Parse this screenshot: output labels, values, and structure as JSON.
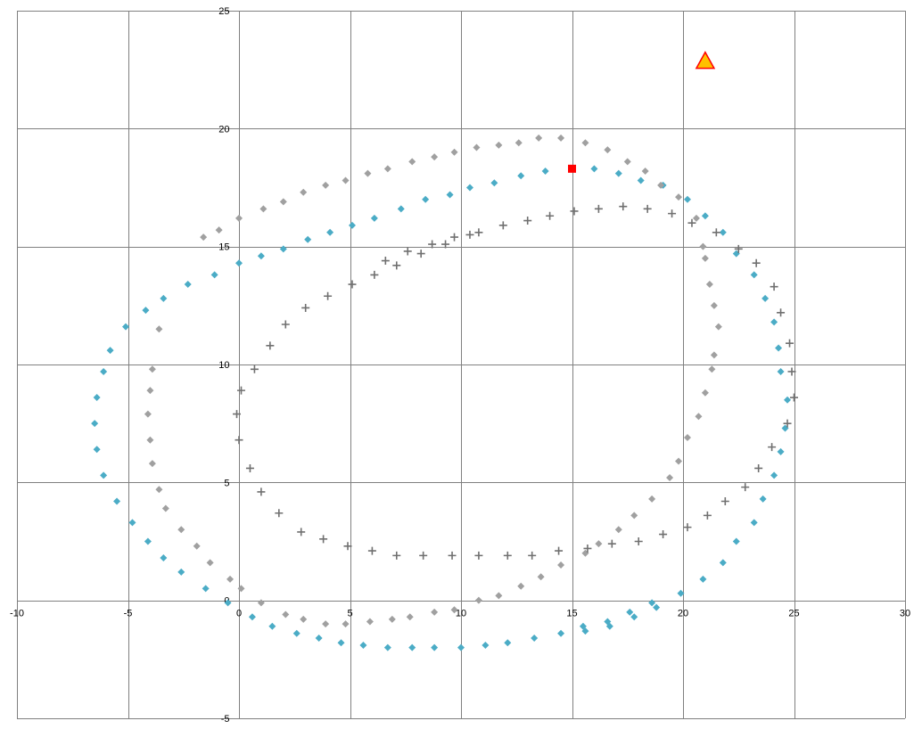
{
  "colors": {
    "background": "#ffffff",
    "grid": "#808080",
    "axis": "#808080",
    "series_blue": "#4bacc6",
    "series_gray": "#a0a0a0",
    "series_plus": "#707070",
    "marker_square": "#ff0000",
    "marker_triangle_fill": "#ffc000",
    "marker_triangle_edge": "#ff0000"
  },
  "chart_data": {
    "type": "scatter",
    "title": "",
    "xlabel": "",
    "ylabel": "",
    "xlim": [
      -10,
      30
    ],
    "ylim": [
      -5,
      25
    ],
    "x_ticks": [
      -10,
      -5,
      0,
      5,
      10,
      15,
      20,
      25,
      30
    ],
    "y_ticks": [
      -5,
      0,
      5,
      10,
      15,
      20,
      25
    ],
    "x_tick_labels": [
      "-10",
      "-5",
      "0",
      "5",
      "10",
      "15",
      "20",
      "25",
      "30"
    ],
    "y_tick_labels": [
      "-5",
      "0",
      "5",
      "10",
      "15",
      "20",
      "25"
    ],
    "grid": true,
    "legend": "none",
    "series": [
      {
        "marker": "diamond",
        "color": "#4bacc6",
        "points": [
          [
            -6.5,
            7.5
          ],
          [
            -6.4,
            6.4
          ],
          [
            -6.4,
            8.6
          ],
          [
            -6.1,
            5.3
          ],
          [
            -6.1,
            9.7
          ],
          [
            -5.8,
            10.6
          ],
          [
            -5.5,
            4.2
          ],
          [
            -5.1,
            11.6
          ],
          [
            -4.8,
            3.3
          ],
          [
            -4.2,
            12.3
          ],
          [
            -4.1,
            2.5
          ],
          [
            -3.4,
            12.8
          ],
          [
            -3.4,
            1.8
          ],
          [
            -2.6,
            1.2
          ],
          [
            -2.3,
            13.4
          ],
          [
            -1.5,
            0.5
          ],
          [
            -1.1,
            13.8
          ],
          [
            -0.5,
            -0.1
          ],
          [
            0.0,
            14.3
          ],
          [
            0.6,
            -0.7
          ],
          [
            1.0,
            14.6
          ],
          [
            1.5,
            -1.1
          ],
          [
            2.0,
            14.9
          ],
          [
            2.6,
            -1.4
          ],
          [
            3.1,
            15.3
          ],
          [
            3.6,
            -1.6
          ],
          [
            4.1,
            15.6
          ],
          [
            4.6,
            -1.8
          ],
          [
            5.1,
            15.9
          ],
          [
            5.6,
            -1.9
          ],
          [
            6.1,
            16.2
          ],
          [
            6.7,
            -2.0
          ],
          [
            7.3,
            16.6
          ],
          [
            7.8,
            -2.0
          ],
          [
            8.4,
            17.0
          ],
          [
            8.8,
            -2.0
          ],
          [
            9.5,
            17.2
          ],
          [
            10.0,
            -2.0
          ],
          [
            10.4,
            17.5
          ],
          [
            11.1,
            -1.9
          ],
          [
            11.5,
            17.7
          ],
          [
            12.1,
            -1.8
          ],
          [
            12.7,
            18.0
          ],
          [
            13.3,
            -1.6
          ],
          [
            13.8,
            18.2
          ],
          [
            14.5,
            -1.4
          ],
          [
            15.5,
            -1.1
          ],
          [
            15.6,
            -1.3
          ],
          [
            16.0,
            18.3
          ],
          [
            16.6,
            -0.9
          ],
          [
            16.7,
            -1.1
          ],
          [
            17.1,
            18.1
          ],
          [
            17.6,
            -0.5
          ],
          [
            17.8,
            -0.7
          ],
          [
            18.1,
            17.8
          ],
          [
            18.6,
            -0.1
          ],
          [
            18.8,
            -0.3
          ],
          [
            19.1,
            17.6
          ],
          [
            19.9,
            0.3
          ],
          [
            20.2,
            17.0
          ],
          [
            20.9,
            0.9
          ],
          [
            21.0,
            16.3
          ],
          [
            21.8,
            1.6
          ],
          [
            21.8,
            15.6
          ],
          [
            22.4,
            2.5
          ],
          [
            22.4,
            14.7
          ],
          [
            23.2,
            3.3
          ],
          [
            23.2,
            13.8
          ],
          [
            23.6,
            4.3
          ],
          [
            23.7,
            12.8
          ],
          [
            24.1,
            5.3
          ],
          [
            24.1,
            11.8
          ],
          [
            24.3,
            10.7
          ],
          [
            24.4,
            6.3
          ],
          [
            24.4,
            9.7
          ],
          [
            24.6,
            7.3
          ],
          [
            24.7,
            8.5
          ]
        ]
      },
      {
        "marker": "diamond",
        "color": "#a0a0a0",
        "points": [
          [
            -4.1,
            7.9
          ],
          [
            -4.0,
            8.9
          ],
          [
            -4.0,
            6.8
          ],
          [
            -3.9,
            9.8
          ],
          [
            -3.9,
            5.8
          ],
          [
            -3.6,
            11.5
          ],
          [
            -3.6,
            4.7
          ],
          [
            -3.3,
            3.9
          ],
          [
            -2.6,
            3.0
          ],
          [
            -1.9,
            2.3
          ],
          [
            -1.6,
            15.4
          ],
          [
            -1.3,
            1.6
          ],
          [
            -0.9,
            15.7
          ],
          [
            -0.4,
            0.9
          ],
          [
            0.0,
            16.2
          ],
          [
            0.1,
            0.5
          ],
          [
            1.0,
            -0.1
          ],
          [
            1.1,
            16.6
          ],
          [
            2.1,
            -0.6
          ],
          [
            2.0,
            16.9
          ],
          [
            2.9,
            -0.8
          ],
          [
            2.9,
            17.3
          ],
          [
            3.9,
            -1.0
          ],
          [
            3.9,
            17.6
          ],
          [
            4.8,
            -1.0
          ],
          [
            4.8,
            17.8
          ],
          [
            5.9,
            -0.9
          ],
          [
            5.8,
            18.1
          ],
          [
            6.9,
            -0.8
          ],
          [
            6.7,
            18.3
          ],
          [
            7.7,
            -0.7
          ],
          [
            7.8,
            18.6
          ],
          [
            8.8,
            -0.5
          ],
          [
            8.8,
            18.8
          ],
          [
            9.7,
            -0.4
          ],
          [
            9.7,
            19.0
          ],
          [
            10.8,
            0.0
          ],
          [
            10.7,
            19.2
          ],
          [
            11.7,
            0.2
          ],
          [
            11.7,
            19.3
          ],
          [
            12.7,
            0.6
          ],
          [
            12.6,
            19.4
          ],
          [
            13.6,
            1.0
          ],
          [
            13.5,
            19.6
          ],
          [
            14.5,
            1.5
          ],
          [
            14.5,
            19.6
          ],
          [
            15.6,
            2.0
          ],
          [
            15.6,
            19.4
          ],
          [
            16.2,
            2.4
          ],
          [
            16.6,
            19.1
          ],
          [
            17.1,
            3.0
          ],
          [
            17.5,
            18.6
          ],
          [
            17.8,
            3.6
          ],
          [
            18.3,
            18.2
          ],
          [
            18.6,
            4.3
          ],
          [
            19.0,
            17.6
          ],
          [
            19.4,
            5.2
          ],
          [
            19.8,
            5.9
          ],
          [
            19.8,
            17.1
          ],
          [
            20.2,
            6.9
          ],
          [
            20.6,
            16.2
          ],
          [
            20.7,
            7.8
          ],
          [
            20.9,
            15.0
          ],
          [
            21.0,
            8.8
          ],
          [
            21.0,
            14.5
          ],
          [
            21.3,
            9.8
          ],
          [
            21.2,
            13.4
          ],
          [
            21.4,
            10.4
          ],
          [
            21.4,
            12.5
          ],
          [
            21.6,
            11.6
          ]
        ]
      },
      {
        "marker": "plus",
        "color": "#707070",
        "points": [
          [
            -0.1,
            7.9
          ],
          [
            0.0,
            6.8
          ],
          [
            0.1,
            8.9
          ],
          [
            0.5,
            5.6
          ],
          [
            0.7,
            9.8
          ],
          [
            1.0,
            4.6
          ],
          [
            1.4,
            10.8
          ],
          [
            1.8,
            3.7
          ],
          [
            2.1,
            11.7
          ],
          [
            2.8,
            2.9
          ],
          [
            3.0,
            12.4
          ],
          [
            3.8,
            2.6
          ],
          [
            4.0,
            12.9
          ],
          [
            4.9,
            2.3
          ],
          [
            5.1,
            13.4
          ],
          [
            6.0,
            2.1
          ],
          [
            6.1,
            13.8
          ],
          [
            6.6,
            14.4
          ],
          [
            7.1,
            14.2
          ],
          [
            7.1,
            1.9
          ],
          [
            7.6,
            14.8
          ],
          [
            8.2,
            14.7
          ],
          [
            8.3,
            1.9
          ],
          [
            8.7,
            15.1
          ],
          [
            9.3,
            15.1
          ],
          [
            9.6,
            1.9
          ],
          [
            9.7,
            15.4
          ],
          [
            10.4,
            15.5
          ],
          [
            10.8,
            15.6
          ],
          [
            10.8,
            1.9
          ],
          [
            11.9,
            15.9
          ],
          [
            12.1,
            1.9
          ],
          [
            13.0,
            16.1
          ],
          [
            13.2,
            1.9
          ],
          [
            14.0,
            16.3
          ],
          [
            14.4,
            2.1
          ],
          [
            15.1,
            16.5
          ],
          [
            15.7,
            2.2
          ],
          [
            16.2,
            16.6
          ],
          [
            16.8,
            2.4
          ],
          [
            17.3,
            16.7
          ],
          [
            18.0,
            2.5
          ],
          [
            18.4,
            16.6
          ],
          [
            19.1,
            2.8
          ],
          [
            19.5,
            16.4
          ],
          [
            20.2,
            3.1
          ],
          [
            20.4,
            16.0
          ],
          [
            21.1,
            3.6
          ],
          [
            21.5,
            15.6
          ],
          [
            21.9,
            4.2
          ],
          [
            22.5,
            14.9
          ],
          [
            22.8,
            4.8
          ],
          [
            23.3,
            14.3
          ],
          [
            23.4,
            5.6
          ],
          [
            24.0,
            6.5
          ],
          [
            24.1,
            13.3
          ],
          [
            24.4,
            12.2
          ],
          [
            24.7,
            7.5
          ],
          [
            24.8,
            10.9
          ],
          [
            24.9,
            9.7
          ],
          [
            25.0,
            8.6
          ]
        ]
      },
      {
        "marker": "square",
        "color": "#ff0000",
        "points": [
          [
            15.0,
            18.3
          ]
        ]
      },
      {
        "marker": "triangle",
        "color": "#ffc000",
        "edge_color": "#ff0000",
        "points": [
          [
            21.0,
            22.9
          ]
        ]
      }
    ]
  }
}
